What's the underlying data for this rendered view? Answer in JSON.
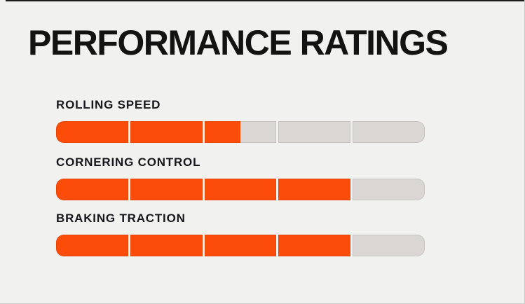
{
  "page": {
    "title": "PERFORMANCE RATINGS"
  },
  "colors": {
    "background": "#f1f1ef",
    "accent_orange": "#fb4d09",
    "track_gray": "#d9d6d3",
    "title_text": "#131313",
    "label_text": "#17171c"
  },
  "chart_data": {
    "type": "bar",
    "orientation": "horizontal",
    "title": "PERFORMANCE RATINGS",
    "categories": [
      "ROLLING SPEED",
      "CORNERING CONTROL",
      "BRAKING TRACTION"
    ],
    "values": [
      2.5,
      4,
      4
    ],
    "max": 5,
    "segments_per_bar": 5,
    "legend": false,
    "grid": false
  }
}
